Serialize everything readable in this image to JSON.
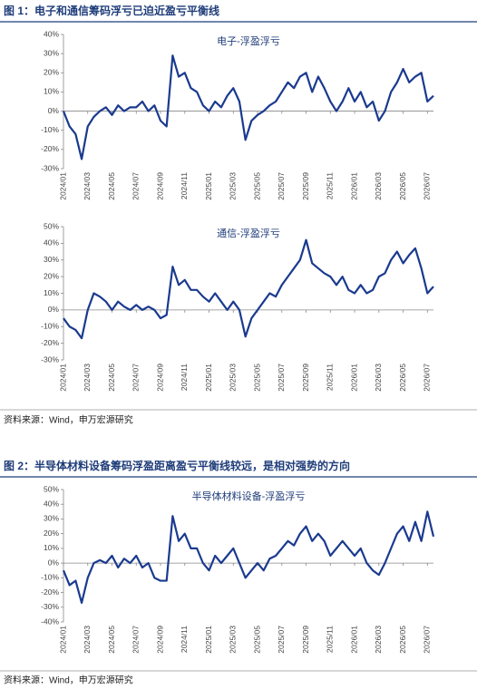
{
  "figures": [
    {
      "caption": "图 1：电子和通信筹码浮亏已迫近盈亏平衡线",
      "source": "资料来源：Wind，申万宏源研究"
    },
    {
      "caption": "图 2：半导体材料设备筹码浮盈距离盈亏平衡线较远，是相对强势的方向",
      "source": "资料来源：Wind，申万宏源研究"
    }
  ],
  "chart_data": [
    {
      "type": "line",
      "title": "电子-浮盈浮亏",
      "color": "#1a3a8f",
      "categories": [
        "2024/01",
        null,
        null,
        null,
        "2024/03",
        null,
        null,
        null,
        "2024/05",
        null,
        null,
        null,
        "2024/07",
        null,
        null,
        null,
        "2024/09",
        null,
        null,
        null,
        "2024/11",
        null,
        null,
        null,
        "2025/01",
        null,
        null,
        null,
        "2025/03",
        null,
        null,
        null,
        "2025/05",
        null,
        null,
        null,
        "2025/07",
        null,
        null,
        null,
        "2025/09",
        null,
        null,
        null,
        "2025/11",
        null,
        null,
        null,
        "2026/01",
        null,
        null,
        null,
        "2026/03",
        null,
        null,
        null,
        "2026/05",
        null,
        null,
        null,
        "2026/07",
        null
      ],
      "values": [
        0,
        -8,
        -12,
        -25,
        -8,
        -3,
        0,
        2,
        -2,
        3,
        0,
        2,
        2,
        5,
        0,
        3,
        -5,
        -8,
        29,
        18,
        20,
        12,
        10,
        3,
        0,
        5,
        2,
        8,
        12,
        5,
        -15,
        -5,
        -2,
        0,
        3,
        5,
        10,
        15,
        12,
        18,
        20,
        10,
        18,
        12,
        5,
        0,
        5,
        12,
        5,
        10,
        2,
        5,
        -5,
        0,
        10,
        15,
        22,
        15,
        18,
        20,
        5,
        8
      ],
      "ylim": [
        -30,
        40
      ],
      "yticks": [
        {
          "value": -30,
          "label": "-30%"
        },
        {
          "value": -20,
          "label": "-20%"
        },
        {
          "value": -10,
          "label": "-10%"
        },
        {
          "value": 0,
          "label": "0%"
        },
        {
          "value": 10,
          "label": "10%"
        },
        {
          "value": 20,
          "label": "20%"
        },
        {
          "value": 30,
          "label": "30%"
        },
        {
          "value": 40,
          "label": "40%"
        }
      ]
    },
    {
      "type": "line",
      "title": "通信-浮盈浮亏",
      "color": "#1a3a8f",
      "categories": [
        "2024/01",
        null,
        null,
        null,
        "2024/03",
        null,
        null,
        null,
        "2024/05",
        null,
        null,
        null,
        "2024/07",
        null,
        null,
        null,
        "2024/09",
        null,
        null,
        null,
        "2024/11",
        null,
        null,
        null,
        "2025/01",
        null,
        null,
        null,
        "2025/03",
        null,
        null,
        null,
        "2025/05",
        null,
        null,
        null,
        "2025/07",
        null,
        null,
        null,
        "2025/09",
        null,
        null,
        null,
        "2025/11",
        null,
        null,
        null,
        "2026/01",
        null,
        null,
        null,
        "2026/03",
        null,
        null,
        null,
        "2026/05",
        null,
        null,
        null,
        "2026/07",
        null
      ],
      "values": [
        -5,
        -10,
        -12,
        -17,
        0,
        10,
        8,
        5,
        0,
        5,
        2,
        0,
        3,
        0,
        2,
        0,
        -5,
        -3,
        26,
        15,
        18,
        12,
        12,
        8,
        5,
        10,
        5,
        0,
        5,
        0,
        -16,
        -5,
        0,
        5,
        10,
        8,
        15,
        20,
        25,
        30,
        42,
        28,
        25,
        22,
        20,
        15,
        20,
        12,
        10,
        15,
        10,
        12,
        20,
        22,
        30,
        35,
        28,
        33,
        37,
        25,
        10,
        14
      ],
      "ylim": [
        -30,
        50
      ],
      "yticks": [
        {
          "value": -30,
          "label": "-30%"
        },
        {
          "value": -20,
          "label": "-20%"
        },
        {
          "value": -10,
          "label": "-10%"
        },
        {
          "value": 0,
          "label": "0%"
        },
        {
          "value": 10,
          "label": "10%"
        },
        {
          "value": 20,
          "label": "20%"
        },
        {
          "value": 30,
          "label": "30%"
        },
        {
          "value": 40,
          "label": "40%"
        },
        {
          "value": 50,
          "label": "50%"
        }
      ]
    },
    {
      "type": "line",
      "title": "半导体材料设备-浮盈浮亏",
      "color": "#1a3a8f",
      "categories": [
        "2024/01",
        null,
        null,
        null,
        "2024/03",
        null,
        null,
        null,
        "2024/05",
        null,
        null,
        null,
        "2024/07",
        null,
        null,
        null,
        "2024/09",
        null,
        null,
        null,
        "2024/11",
        null,
        null,
        null,
        "2025/01",
        null,
        null,
        null,
        "2025/03",
        null,
        null,
        null,
        "2025/05",
        null,
        null,
        null,
        "2025/07",
        null,
        null,
        null,
        "2025/09",
        null,
        null,
        null,
        "2025/11",
        null,
        null,
        null,
        "2026/01",
        null,
        null,
        null,
        "2026/03",
        null,
        null,
        null,
        "2026/05",
        null,
        null,
        null,
        "2026/07",
        null
      ],
      "values": [
        -5,
        -15,
        -12,
        -27,
        -10,
        0,
        2,
        0,
        5,
        -3,
        3,
        0,
        5,
        -3,
        0,
        -10,
        -12,
        -12,
        32,
        15,
        20,
        10,
        10,
        0,
        -5,
        5,
        0,
        5,
        10,
        0,
        -10,
        -5,
        0,
        -5,
        3,
        5,
        10,
        15,
        12,
        20,
        25,
        15,
        20,
        15,
        5,
        10,
        15,
        10,
        5,
        10,
        0,
        -5,
        -8,
        0,
        10,
        20,
        25,
        15,
        28,
        15,
        35,
        18
      ],
      "ylim": [
        -40,
        50
      ],
      "yticks": [
        {
          "value": -40,
          "label": "-40%"
        },
        {
          "value": -30,
          "label": "-30%"
        },
        {
          "value": -20,
          "label": "-20%"
        },
        {
          "value": -10,
          "label": "-10%"
        },
        {
          "value": 0,
          "label": "0%"
        },
        {
          "value": 10,
          "label": "10%"
        },
        {
          "value": 20,
          "label": "20%"
        },
        {
          "value": 30,
          "label": "30%"
        },
        {
          "value": 40,
          "label": "40%"
        },
        {
          "value": 50,
          "label": "50%"
        }
      ]
    }
  ]
}
